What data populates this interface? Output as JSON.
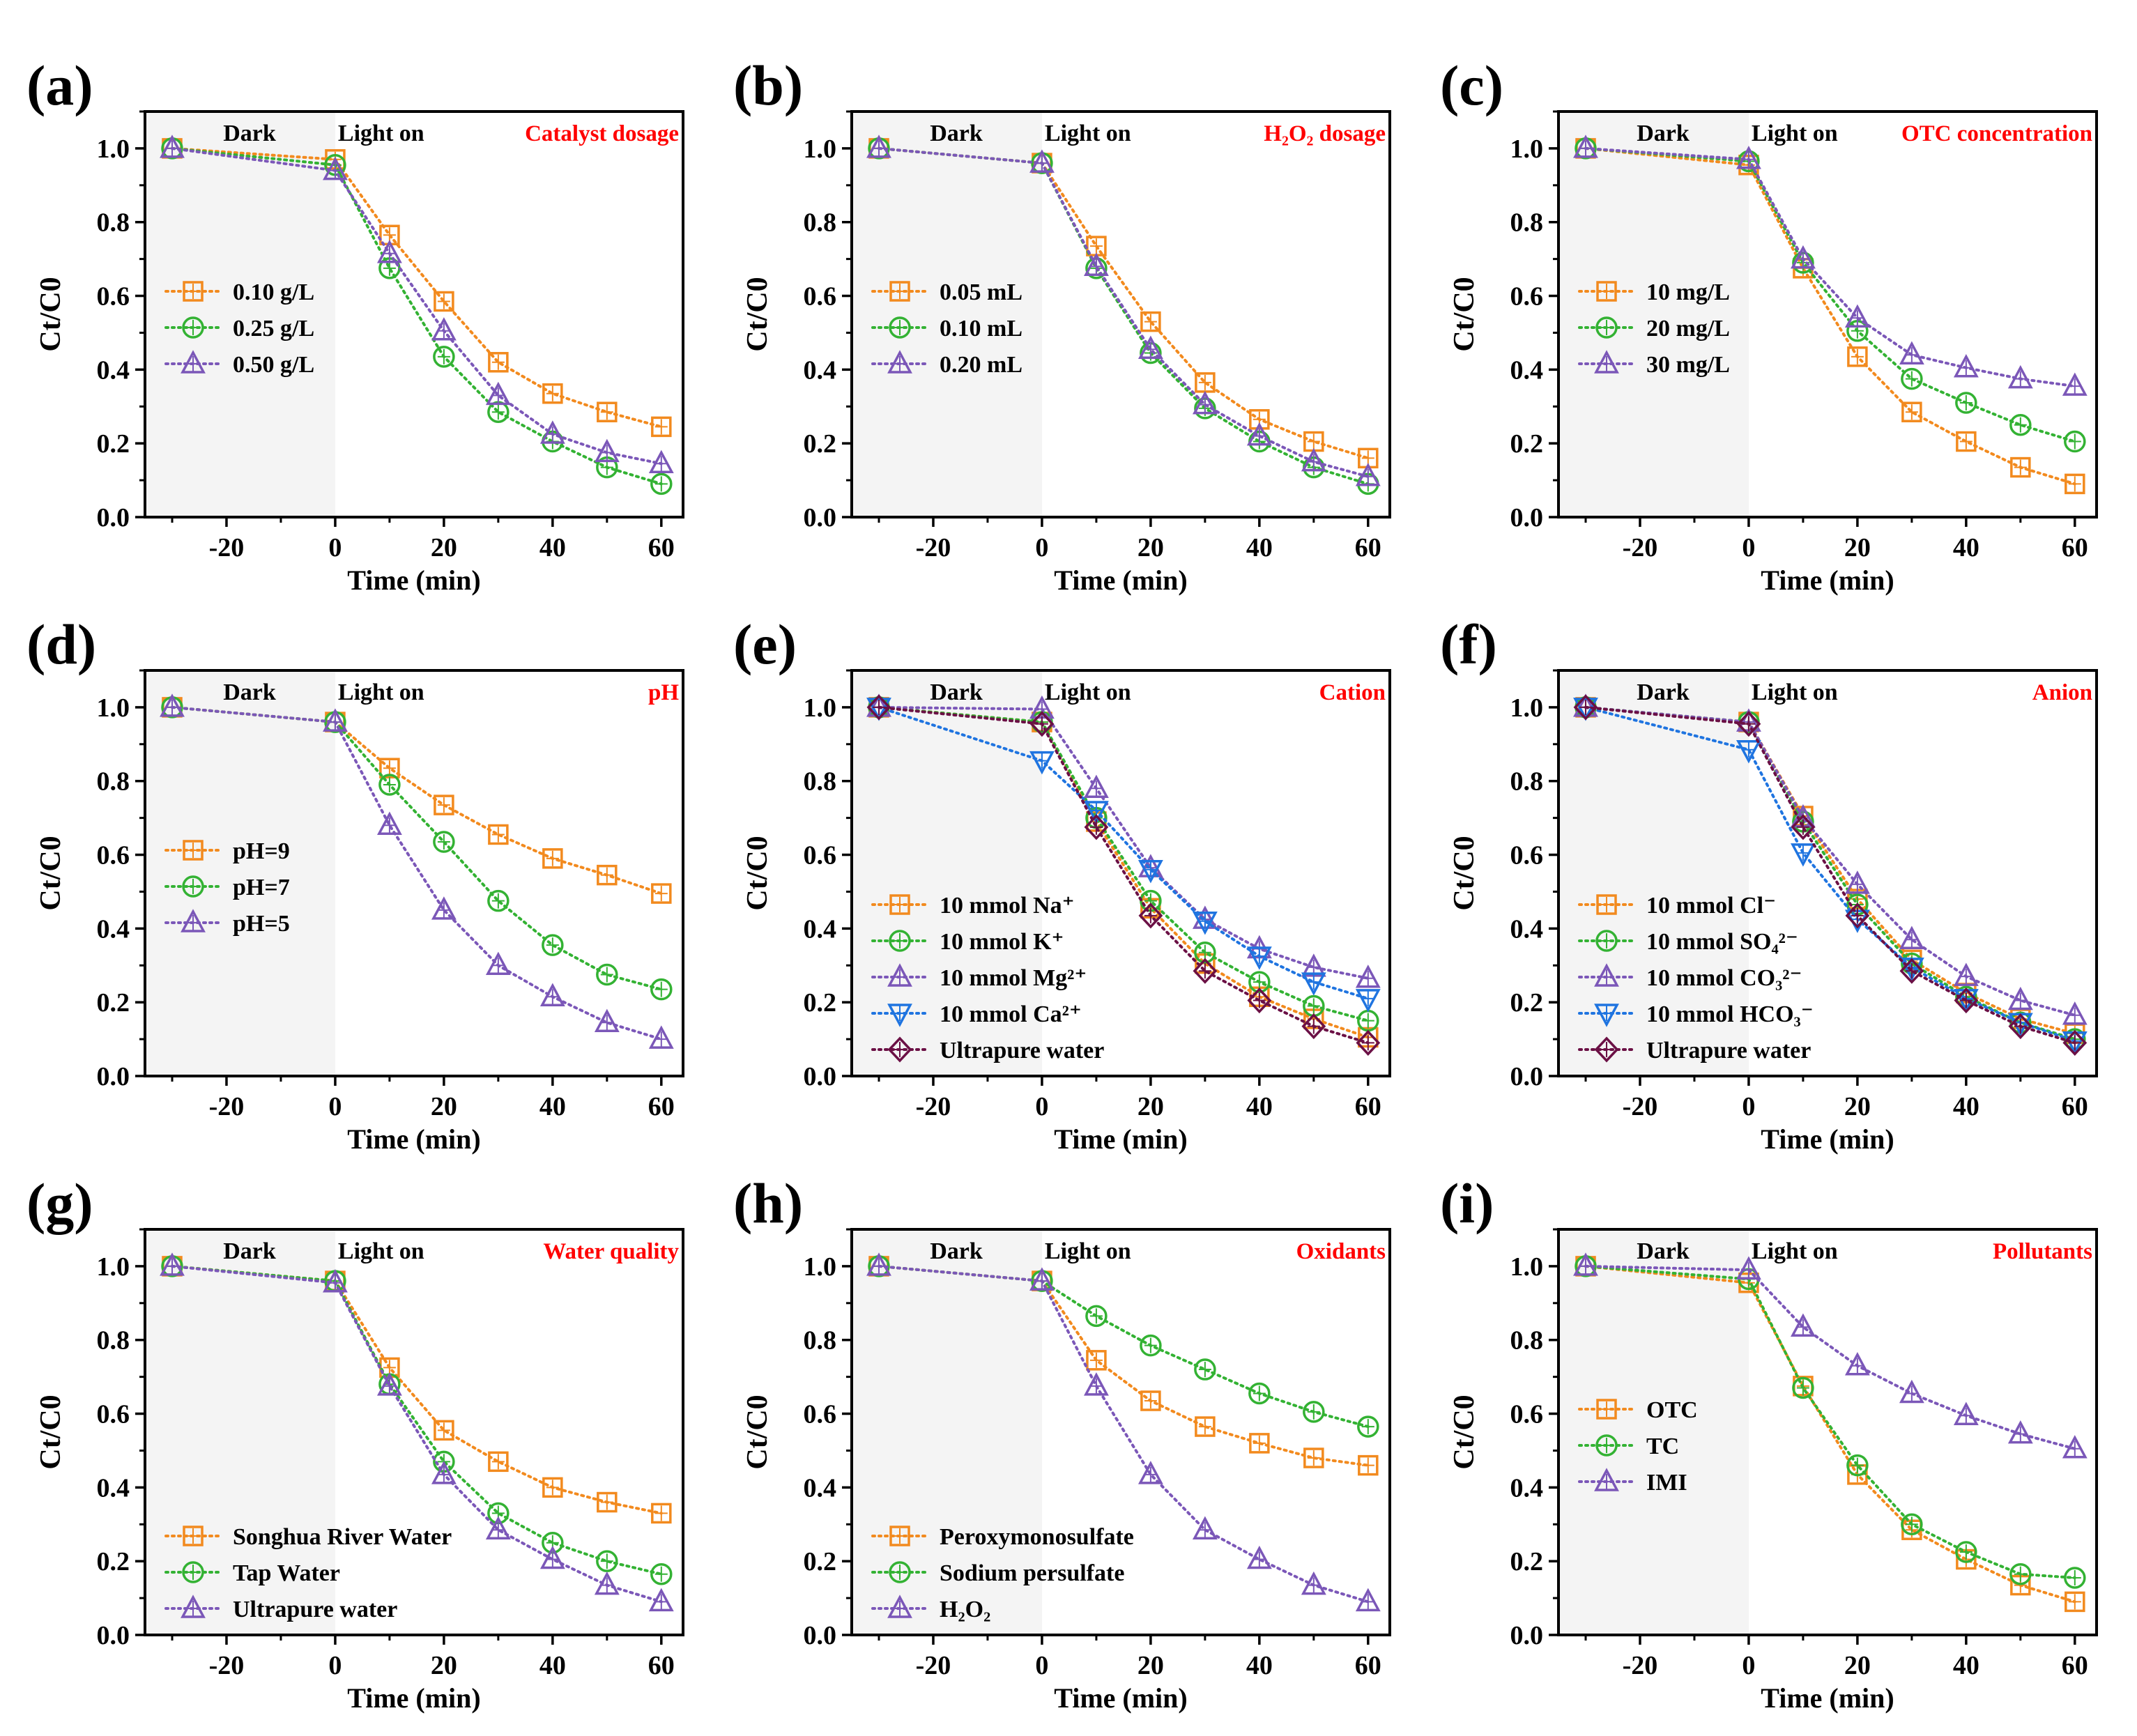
{
  "figure": {
    "dark_label": "Dark",
    "light_label": "Light on",
    "colors": {
      "orange": "#f28a1e",
      "green": "#33b233",
      "purple": "#7b57b8",
      "blue": "#1f74e0",
      "maroon": "#6b1045",
      "condition_title": "#ff0000",
      "dark_region": "#f4f4f4"
    }
  },
  "chart_data": [
    {
      "type": "line",
      "panel_label": "(a)",
      "title": "Catalyst dosage",
      "xlabel": "Time (min)",
      "ylabel": "Ct/C0",
      "xlim": [
        -35,
        64
      ],
      "ylim": [
        0,
        1.1
      ],
      "xticks": [
        "-20",
        "0",
        "20",
        "40",
        "60"
      ],
      "yticks": [
        "0.0",
        "0.2",
        "0.4",
        "0.6",
        "0.8",
        "1.0"
      ],
      "x": [
        -30,
        0,
        10,
        20,
        30,
        40,
        50,
        60
      ],
      "legend_position": "left-middle",
      "series": [
        {
          "name": "0.10 g/L",
          "color": "orange",
          "marker": "square",
          "values": [
            1.0,
            0.97,
            0.765,
            0.585,
            0.42,
            0.335,
            0.285,
            0.245
          ]
        },
        {
          "name": "0.25 g/L",
          "color": "green",
          "marker": "circle",
          "values": [
            1.0,
            0.955,
            0.675,
            0.435,
            0.285,
            0.205,
            0.135,
            0.09
          ]
        },
        {
          "name": "0.50 g/L",
          "color": "purple",
          "marker": "triangle",
          "values": [
            1.0,
            0.94,
            0.715,
            0.505,
            0.33,
            0.225,
            0.175,
            0.145
          ]
        }
      ]
    },
    {
      "type": "line",
      "panel_label": "(b)",
      "title": "H₂O₂ dosage",
      "xlabel": "Time (min)",
      "ylabel": "Ct/C0",
      "xlim": [
        -35,
        64
      ],
      "ylim": [
        0,
        1.1
      ],
      "xticks": [
        "-20",
        "0",
        "20",
        "40",
        "60"
      ],
      "yticks": [
        "0.0",
        "0.2",
        "0.4",
        "0.6",
        "0.8",
        "1.0"
      ],
      "x": [
        -30,
        0,
        10,
        20,
        30,
        40,
        50,
        60
      ],
      "legend_position": "left-middle",
      "series": [
        {
          "name": "0.05 mL",
          "color": "orange",
          "marker": "square",
          "values": [
            1.0,
            0.96,
            0.735,
            0.53,
            0.365,
            0.265,
            0.205,
            0.16
          ]
        },
        {
          "name": "0.10 mL",
          "color": "green",
          "marker": "circle",
          "values": [
            1.0,
            0.96,
            0.675,
            0.445,
            0.295,
            0.205,
            0.135,
            0.09
          ]
        },
        {
          "name": "0.20 mL",
          "color": "purple",
          "marker": "triangle",
          "values": [
            1.0,
            0.96,
            0.68,
            0.455,
            0.305,
            0.22,
            0.15,
            0.11
          ]
        }
      ]
    },
    {
      "type": "line",
      "panel_label": "(c)",
      "title": "OTC concentration",
      "xlabel": "Time (min)",
      "ylabel": "Ct/C0",
      "xlim": [
        -35,
        64
      ],
      "ylim": [
        0,
        1.1
      ],
      "xticks": [
        "-20",
        "0",
        "20",
        "40",
        "60"
      ],
      "yticks": [
        "0.0",
        "0.2",
        "0.4",
        "0.6",
        "0.8",
        "1.0"
      ],
      "x": [
        -30,
        0,
        10,
        20,
        30,
        40,
        50,
        60
      ],
      "legend_position": "left-middle",
      "series": [
        {
          "name": "10 mg/L",
          "color": "orange",
          "marker": "square",
          "values": [
            1.0,
            0.955,
            0.675,
            0.435,
            0.285,
            0.205,
            0.135,
            0.09
          ]
        },
        {
          "name": "20 mg/L",
          "color": "green",
          "marker": "circle",
          "values": [
            1.0,
            0.965,
            0.69,
            0.505,
            0.375,
            0.31,
            0.25,
            0.205
          ]
        },
        {
          "name": "30 mg/L",
          "color": "purple",
          "marker": "triangle",
          "values": [
            1.0,
            0.97,
            0.7,
            0.54,
            0.44,
            0.405,
            0.375,
            0.355
          ]
        }
      ]
    },
    {
      "type": "line",
      "panel_label": "(d)",
      "title": "pH",
      "xlabel": "Time (min)",
      "ylabel": "Ct/C0",
      "xlim": [
        -35,
        64
      ],
      "ylim": [
        0,
        1.1
      ],
      "xticks": [
        "-20",
        "0",
        "20",
        "40",
        "60"
      ],
      "yticks": [
        "0.0",
        "0.2",
        "0.4",
        "0.6",
        "0.8",
        "1.0"
      ],
      "x": [
        -30,
        0,
        10,
        20,
        30,
        40,
        50,
        60
      ],
      "legend_position": "left-middle",
      "series": [
        {
          "name": "pH=9",
          "color": "orange",
          "marker": "square",
          "values": [
            1.0,
            0.96,
            0.835,
            0.735,
            0.655,
            0.59,
            0.545,
            0.495
          ]
        },
        {
          "name": "pH=7",
          "color": "green",
          "marker": "circle",
          "values": [
            1.0,
            0.96,
            0.79,
            0.635,
            0.475,
            0.355,
            0.275,
            0.235
          ]
        },
        {
          "name": "pH=5",
          "color": "purple",
          "marker": "triangle",
          "values": [
            1.0,
            0.96,
            0.68,
            0.45,
            0.3,
            0.215,
            0.145,
            0.1
          ]
        }
      ]
    },
    {
      "type": "line",
      "panel_label": "(e)",
      "title": "Cation",
      "xlabel": "Time (min)",
      "ylabel": "Ct/C0",
      "xlim": [
        -35,
        64
      ],
      "ylim": [
        0,
        1.1
      ],
      "xticks": [
        "-20",
        "0",
        "20",
        "40",
        "60"
      ],
      "yticks": [
        "0.0",
        "0.2",
        "0.4",
        "0.6",
        "0.8",
        "1.0"
      ],
      "x": [
        -30,
        0,
        10,
        20,
        30,
        40,
        50,
        60
      ],
      "legend_position": "left-lower",
      "series": [
        {
          "name": "10 mmol Na⁺",
          "color": "orange",
          "marker": "square",
          "values": [
            1.0,
            0.96,
            0.69,
            0.455,
            0.305,
            0.215,
            0.155,
            0.105
          ]
        },
        {
          "name": "10 mmol K⁺",
          "color": "green",
          "marker": "circle",
          "values": [
            1.0,
            0.96,
            0.7,
            0.475,
            0.335,
            0.255,
            0.19,
            0.15
          ]
        },
        {
          "name": "10 mmol Mg²⁺",
          "color": "purple",
          "marker": "triangle",
          "values": [
            1.0,
            0.995,
            0.78,
            0.565,
            0.425,
            0.345,
            0.295,
            0.265
          ]
        },
        {
          "name": "10 mmol Ca²⁺",
          "color": "blue",
          "marker": "triangle-down",
          "values": [
            1.0,
            0.855,
            0.72,
            0.56,
            0.42,
            0.325,
            0.255,
            0.21
          ]
        },
        {
          "name": "Ultrapure water",
          "color": "maroon",
          "marker": "diamond",
          "values": [
            1.0,
            0.955,
            0.675,
            0.435,
            0.285,
            0.205,
            0.135,
            0.09
          ]
        }
      ]
    },
    {
      "type": "line",
      "panel_label": "(f)",
      "title": "Anion",
      "xlabel": "Time (min)",
      "ylabel": "Ct/C0",
      "xlim": [
        -35,
        64
      ],
      "ylim": [
        0,
        1.1
      ],
      "xticks": [
        "-20",
        "0",
        "20",
        "40",
        "60"
      ],
      "yticks": [
        "0.0",
        "0.2",
        "0.4",
        "0.6",
        "0.8",
        "1.0"
      ],
      "x": [
        -30,
        0,
        10,
        20,
        30,
        40,
        50,
        60
      ],
      "legend_position": "left-lower",
      "series": [
        {
          "name": "10 mmol Cl⁻",
          "color": "orange",
          "marker": "square",
          "values": [
            1.0,
            0.96,
            0.705,
            0.48,
            0.315,
            0.225,
            0.155,
            0.115
          ]
        },
        {
          "name": "10 mmol SO₄²⁻",
          "color": "green",
          "marker": "circle",
          "values": [
            1.0,
            0.96,
            0.69,
            0.465,
            0.305,
            0.215,
            0.145,
            0.1
          ]
        },
        {
          "name": "10 mmol CO₃²⁻",
          "color": "purple",
          "marker": "triangle",
          "values": [
            1.0,
            0.96,
            0.7,
            0.52,
            0.37,
            0.27,
            0.205,
            0.165
          ]
        },
        {
          "name": "10 mmol HCO₃⁻",
          "color": "blue",
          "marker": "triangle-down",
          "values": [
            1.0,
            0.885,
            0.605,
            0.425,
            0.295,
            0.21,
            0.145,
            0.095
          ]
        },
        {
          "name": "Ultrapure water",
          "color": "maroon",
          "marker": "diamond",
          "values": [
            1.0,
            0.955,
            0.675,
            0.435,
            0.285,
            0.205,
            0.135,
            0.09
          ]
        }
      ]
    },
    {
      "type": "line",
      "panel_label": "(g)",
      "title": "Water quality",
      "xlabel": "Time (min)",
      "ylabel": "Ct/C0",
      "xlim": [
        -35,
        64
      ],
      "ylim": [
        0,
        1.1
      ],
      "xticks": [
        "-20",
        "0",
        "20",
        "40",
        "60"
      ],
      "yticks": [
        "0.0",
        "0.2",
        "0.4",
        "0.6",
        "0.8",
        "1.0"
      ],
      "x": [
        -30,
        0,
        10,
        20,
        30,
        40,
        50,
        60
      ],
      "legend_position": "left-lower",
      "series": [
        {
          "name": "Songhua River Water",
          "color": "orange",
          "marker": "square",
          "values": [
            1.0,
            0.96,
            0.725,
            0.555,
            0.47,
            0.4,
            0.36,
            0.33
          ]
        },
        {
          "name": "Tap Water",
          "color": "green",
          "marker": "circle",
          "values": [
            1.0,
            0.96,
            0.68,
            0.47,
            0.33,
            0.25,
            0.2,
            0.165
          ]
        },
        {
          "name": "Ultrapure water",
          "color": "purple",
          "marker": "triangle",
          "values": [
            1.0,
            0.955,
            0.675,
            0.435,
            0.285,
            0.205,
            0.135,
            0.09
          ]
        }
      ]
    },
    {
      "type": "line",
      "panel_label": "(h)",
      "title": "Oxidants",
      "xlabel": "Time (min)",
      "ylabel": "Ct/C0",
      "xlim": [
        -35,
        64
      ],
      "ylim": [
        0,
        1.1
      ],
      "xticks": [
        "-20",
        "0",
        "20",
        "40",
        "60"
      ],
      "yticks": [
        "0.0",
        "0.2",
        "0.4",
        "0.6",
        "0.8",
        "1.0"
      ],
      "x": [
        -30,
        0,
        10,
        20,
        30,
        40,
        50,
        60
      ],
      "legend_position": "left-lower",
      "series": [
        {
          "name": "Peroxymonosulfate",
          "color": "orange",
          "marker": "square",
          "values": [
            1.0,
            0.96,
            0.745,
            0.635,
            0.565,
            0.52,
            0.48,
            0.46
          ]
        },
        {
          "name": "Sodium persulfate",
          "color": "green",
          "marker": "circle",
          "values": [
            1.0,
            0.96,
            0.865,
            0.785,
            0.72,
            0.655,
            0.605,
            0.565
          ]
        },
        {
          "name": "H₂O₂",
          "color": "purple",
          "marker": "triangle",
          "values": [
            1.0,
            0.96,
            0.675,
            0.435,
            0.285,
            0.205,
            0.135,
            0.09
          ]
        }
      ]
    },
    {
      "type": "line",
      "panel_label": "(i)",
      "title": "Pollutants",
      "xlabel": "Time (min)",
      "ylabel": "Ct/C0",
      "xlim": [
        -35,
        64
      ],
      "ylim": [
        0,
        1.1
      ],
      "xticks": [
        "-20",
        "0",
        "20",
        "40",
        "60"
      ],
      "yticks": [
        "0.0",
        "0.2",
        "0.4",
        "0.6",
        "0.8",
        "1.0"
      ],
      "x": [
        -30,
        0,
        10,
        20,
        30,
        40,
        50,
        60
      ],
      "legend_position": "left-middle",
      "series": [
        {
          "name": "OTC",
          "color": "orange",
          "marker": "square",
          "values": [
            1.0,
            0.955,
            0.675,
            0.435,
            0.285,
            0.205,
            0.135,
            0.09
          ]
        },
        {
          "name": "TC",
          "color": "green",
          "marker": "circle",
          "values": [
            1.0,
            0.965,
            0.67,
            0.46,
            0.3,
            0.225,
            0.165,
            0.155
          ]
        },
        {
          "name": "IMI",
          "color": "purple",
          "marker": "triangle",
          "values": [
            1.0,
            0.99,
            0.835,
            0.73,
            0.655,
            0.595,
            0.545,
            0.505
          ]
        }
      ]
    }
  ]
}
